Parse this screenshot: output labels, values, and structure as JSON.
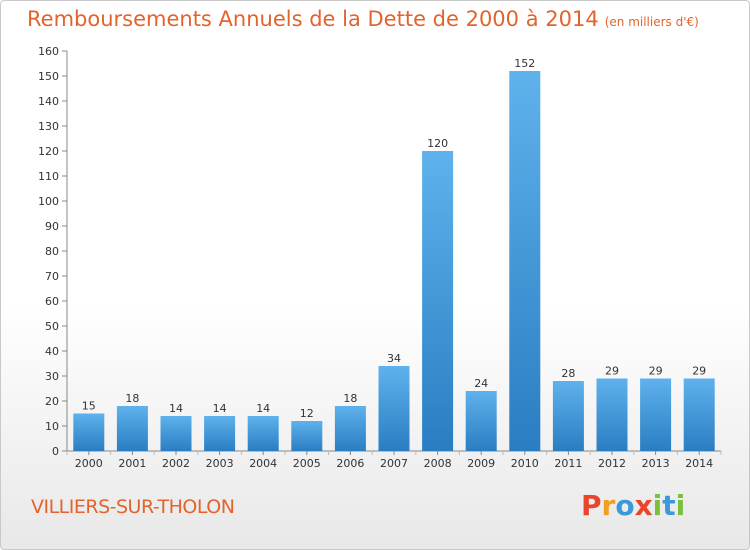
{
  "header": {
    "title": "Remboursements Annuels de la Dette de 2000 à 2014",
    "unit": "(en milliers d'€)"
  },
  "footer": {
    "commune": "VILLIERS-SUR-THOLON",
    "logo_letters": [
      "P",
      "r",
      "o",
      "x",
      "i",
      "t",
      "i"
    ],
    "logo_colors": [
      "#e8452c",
      "#f0a020",
      "#3a9ad9",
      "#e8452c",
      "#7cbf3a",
      "#3a9ad9",
      "#7cbf3a"
    ]
  },
  "chart_data": {
    "type": "bar",
    "title": "Remboursements Annuels de la Dette de 2000 à 2014",
    "xlabel": "",
    "ylabel": "",
    "categories": [
      "2000",
      "2001",
      "2002",
      "2003",
      "2004",
      "2005",
      "2006",
      "2007",
      "2008",
      "2009",
      "2010",
      "2011",
      "2012",
      "2013",
      "2014"
    ],
    "values": [
      15,
      18,
      14,
      14,
      14,
      12,
      18,
      34,
      120,
      24,
      152,
      28,
      29,
      29,
      29
    ],
    "ylim": [
      0,
      160
    ],
    "yticks": [
      0,
      10,
      20,
      30,
      40,
      50,
      60,
      70,
      80,
      90,
      100,
      110,
      120,
      130,
      140,
      150,
      160
    ],
    "grid": false,
    "bar_color": "#3d93d6"
  }
}
